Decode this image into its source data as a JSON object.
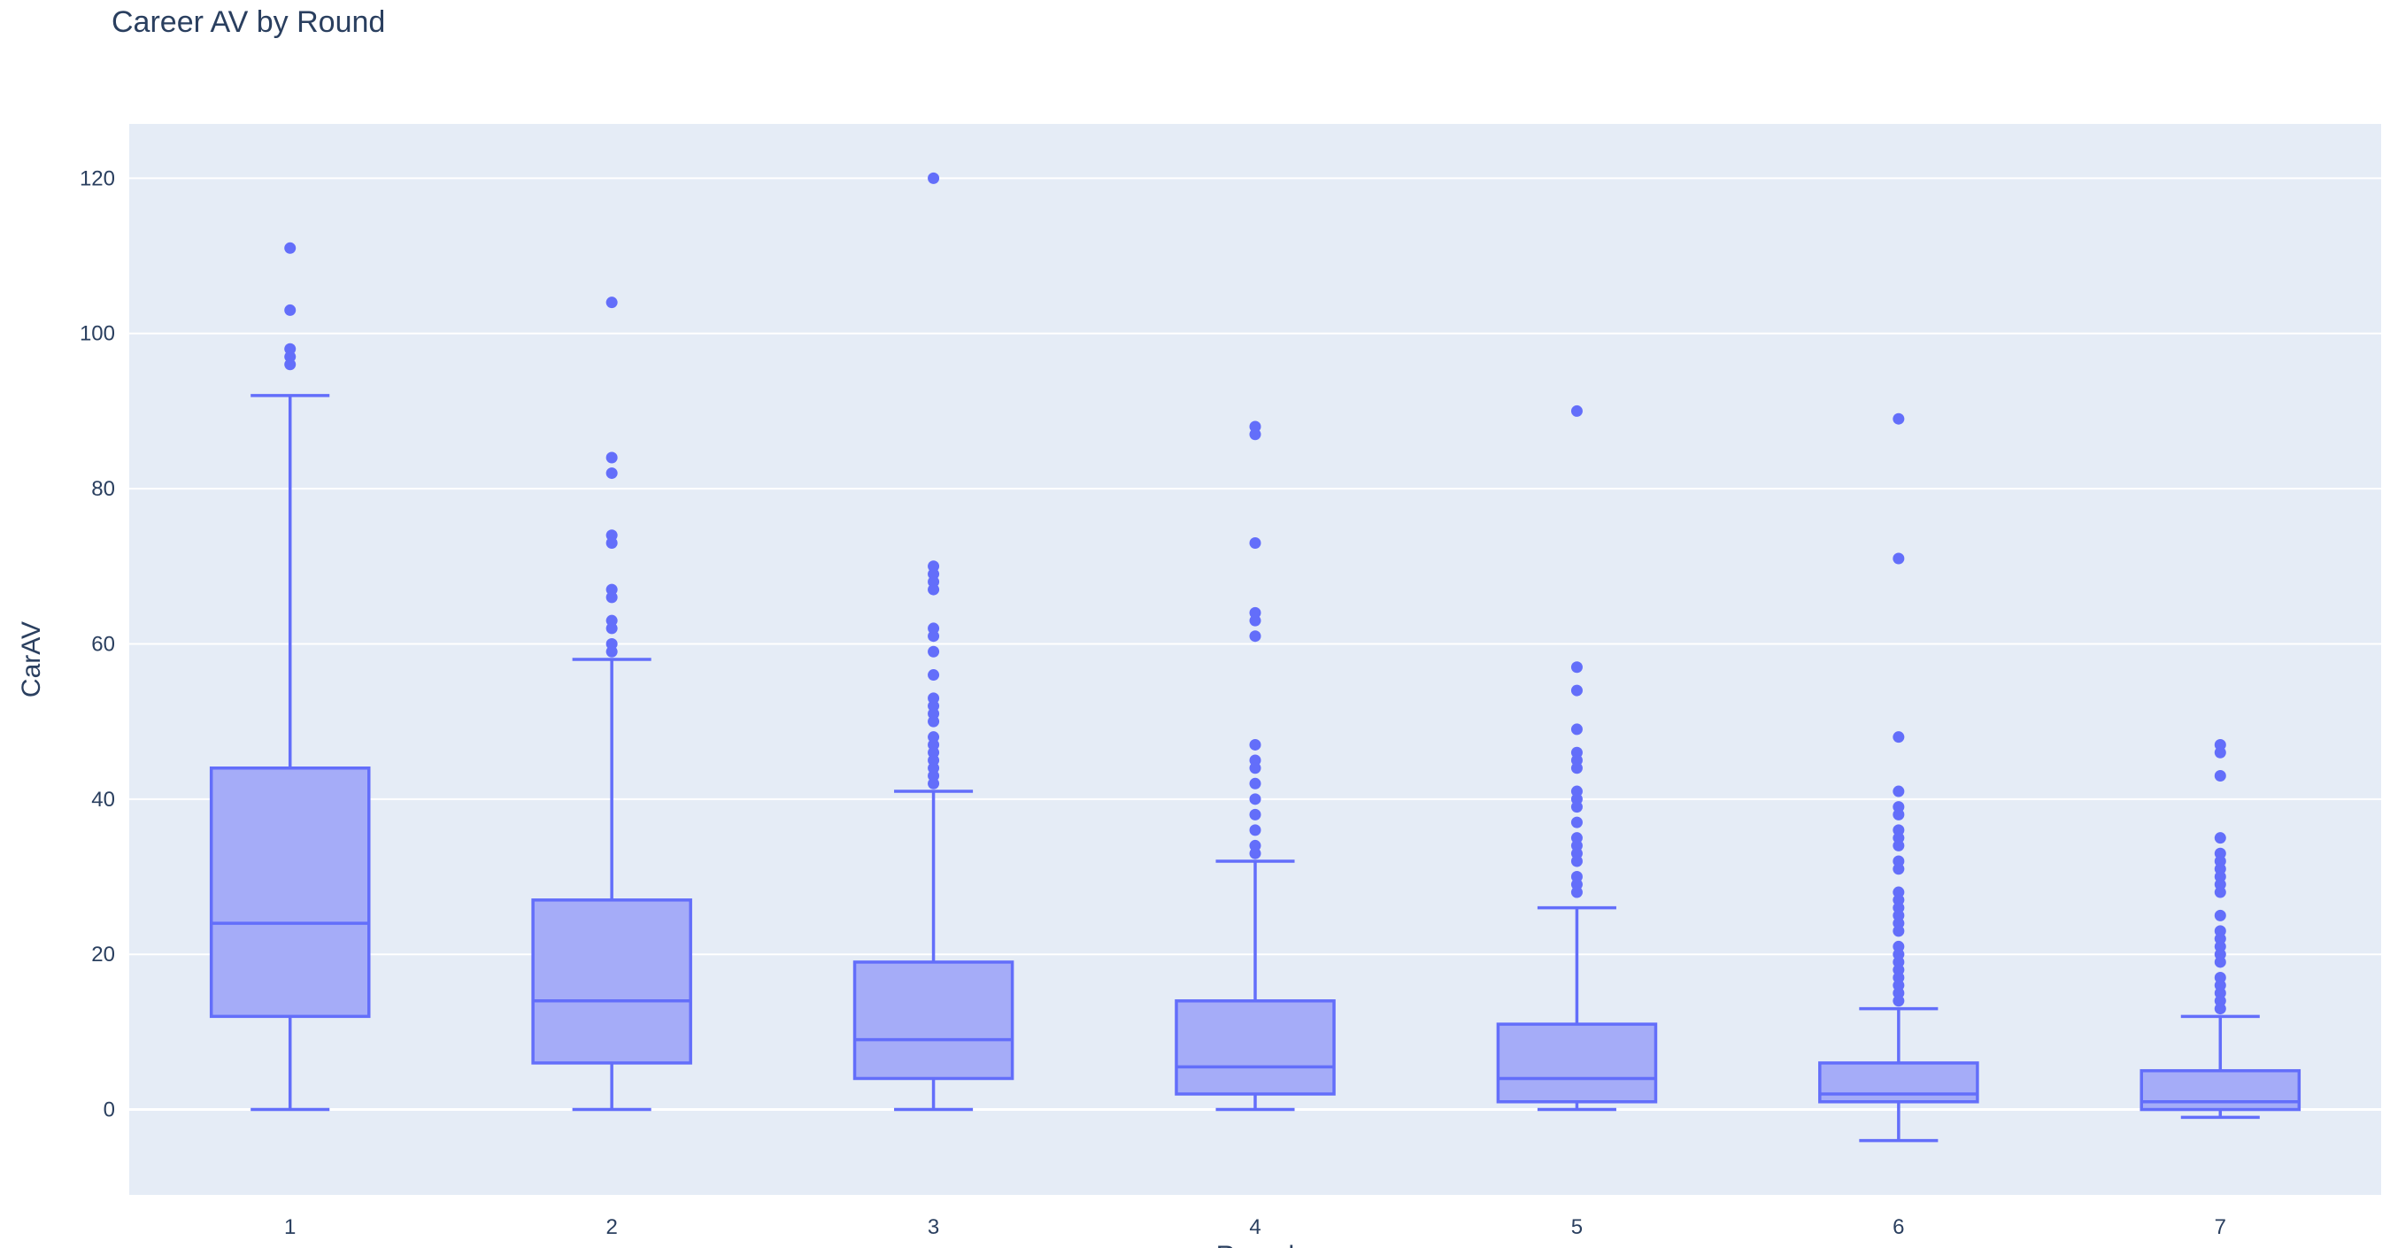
{
  "chart_data": {
    "type": "box",
    "title": "Career AV by Round",
    "xlabel": "Round",
    "ylabel": "CarAV",
    "categories": [
      "1",
      "2",
      "3",
      "4",
      "5",
      "6",
      "7"
    ],
    "ylim": [
      -11,
      127
    ],
    "yticks": [
      0,
      20,
      40,
      60,
      80,
      100,
      120
    ],
    "grid": true,
    "colors": {
      "box_fill": "#a5acf8",
      "box_line": "#636efa",
      "plot_bg": "#e5ecf6",
      "text": "#2a3f5f",
      "grid": "#ffffff"
    },
    "boxes": [
      {
        "category": "1",
        "lower_fence": 0,
        "q1": 12,
        "median": 24,
        "q3": 44,
        "upper_fence": 92,
        "outliers": [
          111,
          103,
          98,
          97,
          96
        ]
      },
      {
        "category": "2",
        "lower_fence": 0,
        "q1": 6,
        "median": 14,
        "q3": 27,
        "upper_fence": 58,
        "outliers": [
          104,
          84,
          82,
          74,
          73,
          67,
          66,
          63,
          62,
          60,
          59
        ]
      },
      {
        "category": "3",
        "lower_fence": 0,
        "q1": 4,
        "median": 9,
        "q3": 19,
        "upper_fence": 41,
        "outliers": [
          120,
          70,
          69,
          68,
          67,
          62,
          61,
          59,
          56,
          53,
          52,
          51,
          50,
          48,
          47,
          46,
          45,
          44,
          43,
          42
        ]
      },
      {
        "category": "4",
        "lower_fence": 0,
        "q1": 2,
        "median": 5.5,
        "q3": 14,
        "upper_fence": 32,
        "outliers": [
          88,
          87,
          73,
          64,
          63,
          61,
          47,
          45,
          44,
          42,
          40,
          38,
          36,
          34,
          33
        ]
      },
      {
        "category": "5",
        "lower_fence": 0,
        "q1": 1,
        "median": 4,
        "q3": 11,
        "upper_fence": 26,
        "outliers": [
          90,
          57,
          54,
          49,
          46,
          45,
          44,
          41,
          40,
          39,
          37,
          35,
          34,
          33,
          32,
          30,
          29,
          28
        ]
      },
      {
        "category": "6",
        "lower_fence": -4,
        "q1": 1,
        "median": 2,
        "q3": 6,
        "upper_fence": 13,
        "outliers": [
          89,
          71,
          48,
          41,
          39,
          38,
          36,
          35,
          34,
          32,
          31,
          28,
          27,
          26,
          25,
          24,
          23,
          21,
          20,
          19,
          18,
          17,
          16,
          15,
          14
        ]
      },
      {
        "category": "7",
        "lower_fence": -1,
        "q1": 0,
        "median": 1,
        "q3": 5,
        "upper_fence": 12,
        "outliers": [
          47,
          46,
          43,
          35,
          33,
          32,
          31,
          30,
          29,
          28,
          25,
          23,
          22,
          21,
          20,
          19,
          17,
          16,
          15,
          14,
          13
        ]
      }
    ]
  }
}
